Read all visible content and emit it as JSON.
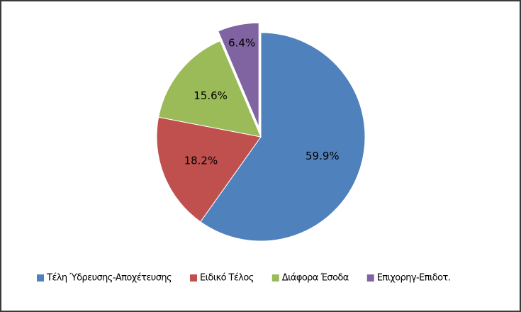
{
  "chart_data": {
    "type": "pie",
    "categories": [
      "Τέλη Ύδρευσης-Αποχέτευσης",
      "Ειδικό Τέλος",
      "Διάφορα Έσοδα",
      "Επιχορηγ-Επιδοτ."
    ],
    "values": [
      59.9,
      18.2,
      15.6,
      6.4
    ],
    "value_labels": [
      "59.9%",
      "18.2%",
      "15.6%",
      "6.4%"
    ],
    "colors": [
      "#4f81bd",
      "#c0504d",
      "#9bbb59",
      "#8064a2"
    ],
    "legend": "bottom"
  }
}
